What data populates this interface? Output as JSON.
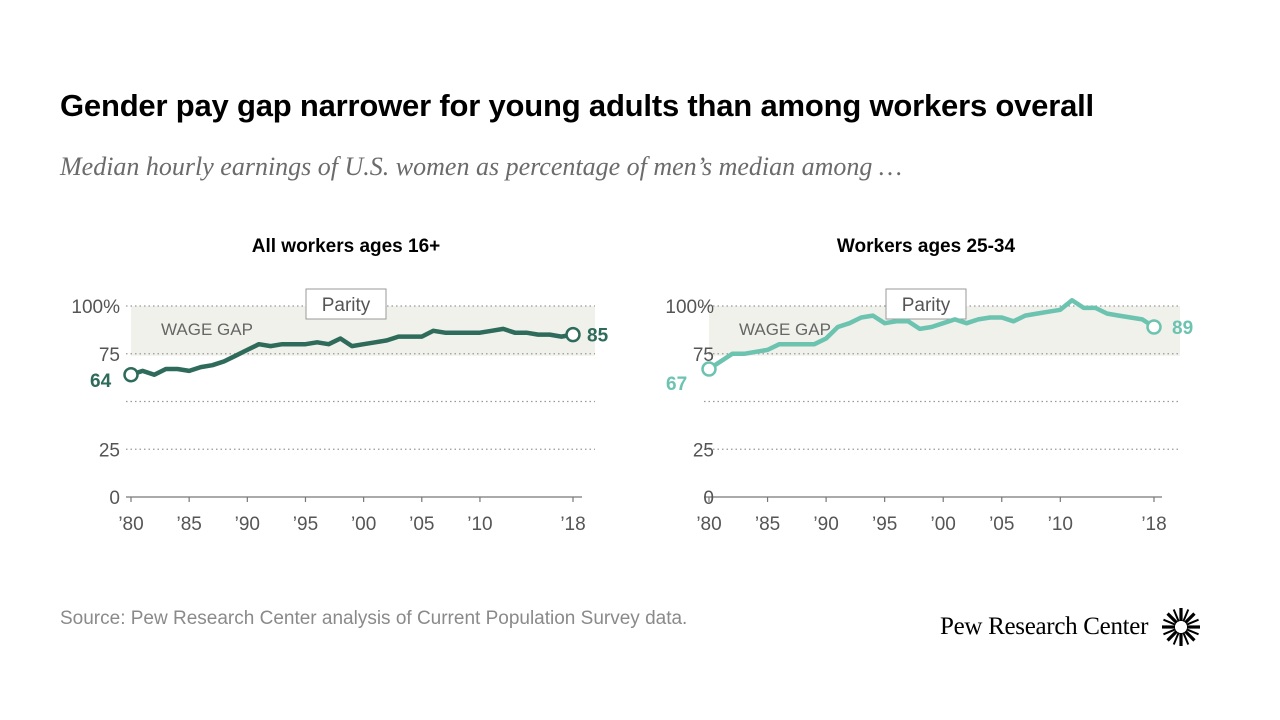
{
  "title": "Gender pay gap narrower for young adults than among workers overall",
  "subtitle": "Median hourly earnings of U.S. women as percentage of men’s median among …",
  "source": "Source: Pew Research Center analysis of Current Population Survey data.",
  "brand": {
    "name": "Pew Research Center",
    "logo_icon": "sunburst-logo-icon"
  },
  "chart_data": [
    {
      "type": "line",
      "title": "All workers ages 16+",
      "color": "#2e6b5a",
      "ylim": [
        0,
        100
      ],
      "yticks": [
        0,
        25,
        75,
        100
      ],
      "ytick_labels": [
        "0",
        "25",
        "75",
        "100%"
      ],
      "xlim": [
        1980,
        2018
      ],
      "xticks": [
        1980,
        1985,
        1990,
        1995,
        2000,
        2005,
        2010,
        2018
      ],
      "xtick_labels": [
        "’80",
        "’85",
        "’90",
        "’95",
        "’00",
        "’05",
        "’10",
        "’18"
      ],
      "band_label": "WAGE GAP",
      "parity_label": "Parity",
      "start_label": "64",
      "end_label": "85",
      "series": [
        {
          "x": [
            1980,
            1981,
            1982,
            1983,
            1984,
            1985,
            1986,
            1987,
            1988,
            1989,
            1990,
            1991,
            1992,
            1993,
            1994,
            1995,
            1996,
            1997,
            1998,
            1999,
            2000,
            2001,
            2002,
            2003,
            2004,
            2005,
            2006,
            2007,
            2008,
            2009,
            2010,
            2011,
            2012,
            2013,
            2014,
            2015,
            2016,
            2017,
            2018
          ],
          "values": [
            64,
            66,
            64,
            67,
            67,
            66,
            68,
            69,
            71,
            74,
            77,
            80,
            79,
            80,
            80,
            80,
            81,
            80,
            83,
            79,
            80,
            81,
            82,
            84,
            84,
            84,
            87,
            86,
            86,
            86,
            86,
            87,
            88,
            86,
            86,
            85,
            85,
            84,
            85
          ]
        }
      ]
    },
    {
      "type": "line",
      "title": "Workers ages 25-34",
      "color": "#6cc3b0",
      "ylim": [
        0,
        100
      ],
      "yticks": [
        0,
        25,
        75,
        100
      ],
      "ytick_labels": [
        "0",
        "25",
        "75",
        "100%"
      ],
      "xlim": [
        1980,
        2018
      ],
      "xticks": [
        1980,
        1985,
        1990,
        1995,
        2000,
        2005,
        2010,
        2018
      ],
      "xtick_labels": [
        "’80",
        "’85",
        "’90",
        "’95",
        "’00",
        "’05",
        "’10",
        "’18"
      ],
      "band_label": "WAGE GAP",
      "parity_label": "Parity",
      "start_label": "67",
      "end_label": "89",
      "series": [
        {
          "x": [
            1980,
            1981,
            1982,
            1983,
            1984,
            1985,
            1986,
            1987,
            1988,
            1989,
            1990,
            1991,
            1992,
            1993,
            1994,
            1995,
            1996,
            1997,
            1998,
            1999,
            2000,
            2001,
            2002,
            2003,
            2004,
            2005,
            2006,
            2007,
            2008,
            2009,
            2010,
            2011,
            2012,
            2013,
            2014,
            2015,
            2016,
            2017,
            2018
          ],
          "values": [
            67,
            71,
            75,
            75,
            76,
            77,
            80,
            80,
            80,
            80,
            83,
            89,
            91,
            94,
            95,
            91,
            92,
            92,
            88,
            89,
            91,
            93,
            91,
            93,
            94,
            94,
            92,
            95,
            96,
            97,
            98,
            103,
            99,
            99,
            96,
            95,
            94,
            93,
            89
          ]
        }
      ]
    }
  ]
}
